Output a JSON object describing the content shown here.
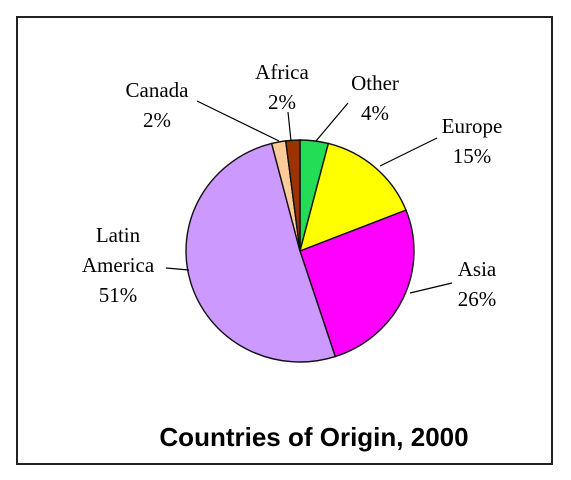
{
  "chart_data": {
    "type": "pie",
    "title": "Countries of Origin, 2000",
    "slices": [
      {
        "label": "Other",
        "value": 4,
        "display": "4%",
        "color": "#22dd55"
      },
      {
        "label": "Europe",
        "value": 15,
        "display": "15%",
        "color": "#ffff00"
      },
      {
        "label": "Asia",
        "value": 26,
        "display": "26%",
        "color": "#ff00ff"
      },
      {
        "label": "Latin America",
        "value": 51,
        "display": "51%",
        "color": "#cc99ff"
      },
      {
        "label": "Canada",
        "value": 2,
        "display": "2%",
        "color": "#ffcc99"
      },
      {
        "label": "Africa",
        "value": 2,
        "display": "2%",
        "color": "#993300"
      }
    ],
    "label_lines": {
      "Latin America": [
        "Latin",
        "America"
      ]
    }
  }
}
